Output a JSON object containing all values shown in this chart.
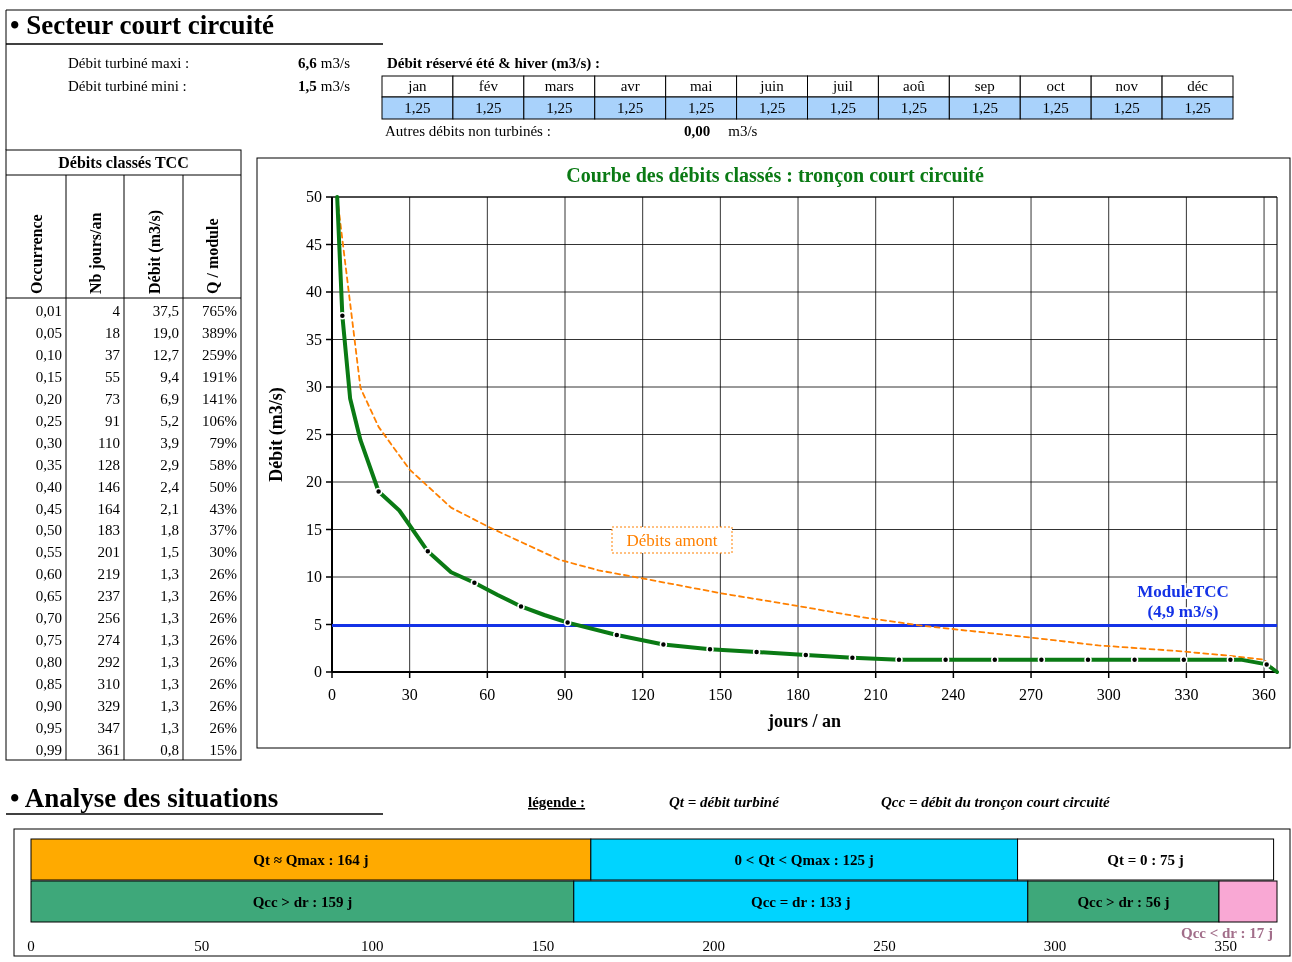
{
  "chart_data": [
    {
      "type": "other",
      "title": "• Secteur court circuité",
      "annotations": [
        "Débit turbiné maxi :",
        "6,6 m3/s",
        "Débit turbiné mini :",
        "1,5 m3/s",
        "Débit réservé été & hiver (m3/s) :",
        "Autres débits non turbinés :",
        "0,00 m3/s"
      ],
      "categories": [
        "jan",
        "fév",
        "mars",
        "avr",
        "mai",
        "juin",
        "juil",
        "aoû",
        "sep",
        "oct",
        "nov",
        "déc"
      ],
      "cell_labels": [
        [
          "1,25",
          "1,25",
          "1,25",
          "1,25",
          "1,25",
          "1,25",
          "1,25",
          "1,25",
          "1,25",
          "1,25",
          "1,25",
          "1,25"
        ]
      ],
      "color": "#a9d2fb"
    },
    {
      "type": "other",
      "title": "Débits classés TCC",
      "categories": [
        "Occurrence",
        "Nb jours/an",
        "Débit (m3/s)",
        "Q / module"
      ],
      "cell_labels": [
        [
          "0,01",
          "4",
          "37,5",
          "765%"
        ],
        [
          "0,05",
          "18",
          "19,0",
          "389%"
        ],
        [
          "0,10",
          "37",
          "12,7",
          "259%"
        ],
        [
          "0,15",
          "55",
          "9,4",
          "191%"
        ],
        [
          "0,20",
          "73",
          "6,9",
          "141%"
        ],
        [
          "0,25",
          "91",
          "5,2",
          "106%"
        ],
        [
          "0,30",
          "110",
          "3,9",
          "79%"
        ],
        [
          "0,35",
          "128",
          "2,9",
          "58%"
        ],
        [
          "0,40",
          "146",
          "2,4",
          "50%"
        ],
        [
          "0,45",
          "164",
          "2,1",
          "43%"
        ],
        [
          "0,50",
          "183",
          "1,8",
          "37%"
        ],
        [
          "0,55",
          "201",
          "1,5",
          "30%"
        ],
        [
          "0,60",
          "219",
          "1,3",
          "26%"
        ],
        [
          "0,65",
          "237",
          "1,3",
          "26%"
        ],
        [
          "0,70",
          "256",
          "1,3",
          "26%"
        ],
        [
          "0,75",
          "274",
          "1,3",
          "26%"
        ],
        [
          "0,80",
          "292",
          "1,3",
          "26%"
        ],
        [
          "0,85",
          "310",
          "1,3",
          "26%"
        ],
        [
          "0,90",
          "329",
          "1,3",
          "26%"
        ],
        [
          "0,95",
          "347",
          "1,3",
          "26%"
        ],
        [
          "0,99",
          "361",
          "0,8",
          "15%"
        ]
      ]
    },
    {
      "type": "line",
      "title": "Courbe des débits classés : tronçon court circuité",
      "xlabel": "jours / an",
      "ylabel": "Débit (m3/s)",
      "xlim": [
        0,
        365
      ],
      "xticks": [
        0,
        30,
        60,
        90,
        120,
        150,
        180,
        210,
        240,
        270,
        300,
        330,
        360
      ],
      "ylim": [
        0,
        50
      ],
      "yticks": [
        0,
        5,
        10,
        15,
        20,
        25,
        30,
        35,
        40,
        45,
        50
      ],
      "grid": true,
      "series": [
        {
          "type": "line",
          "color": "#ff8000",
          "line_style": "dashed",
          "x": [
            2,
            11,
            18,
            30,
            46,
            61,
            88,
            103,
            119,
            150,
            181,
            204,
            227,
            254,
            277,
            296,
            327,
            347,
            360,
            365
          ],
          "values": [
            50,
            29.9,
            25.8,
            21.3,
            17.3,
            15.2,
            11.8,
            10.7,
            9.9,
            8.3,
            6.9,
            5.8,
            4.9,
            4.1,
            3.4,
            2.8,
            2.2,
            1.7,
            1.3,
            0
          ]
        },
        {
          "type": "line",
          "color": "#0a7a14",
          "line_style": "solid",
          "x": [
            2,
            4,
            7,
            11,
            18,
            26,
            37,
            46,
            55,
            64,
            73,
            82,
            91,
            110,
            128,
            146,
            164,
            183,
            201,
            219,
            237,
            256,
            274,
            292,
            310,
            329,
            347,
            351,
            361,
            365
          ],
          "values": [
            50,
            37.5,
            28.8,
            24.4,
            19,
            17,
            12.7,
            10.5,
            9.4,
            8.1,
            6.9,
            6,
            5.2,
            3.9,
            2.9,
            2.4,
            2.1,
            1.8,
            1.5,
            1.3,
            1.3,
            1.3,
            1.3,
            1.3,
            1.3,
            1.3,
            1.3,
            1.3,
            0.8,
            0
          ]
        },
        {
          "type": "scatter",
          "color": "#000000",
          "marker": "circle",
          "x": [
            4,
            18,
            37,
            55,
            73,
            91,
            110,
            128,
            146,
            164,
            183,
            201,
            219,
            237,
            256,
            274,
            292,
            310,
            329,
            347,
            361
          ],
          "values": [
            37.5,
            19.0,
            12.7,
            9.4,
            6.9,
            5.2,
            3.9,
            2.9,
            2.4,
            2.1,
            1.8,
            1.5,
            1.3,
            1.3,
            1.3,
            1.3,
            1.3,
            1.3,
            1.3,
            1.3,
            0.8
          ]
        }
      ],
      "ref_lines": [
        {
          "axis": "y",
          "value": 4.9,
          "label": "ModuleTCC (4,9 m3/s)",
          "color": "#1432e6"
        }
      ],
      "annotations": [
        "Débits amont"
      ]
    },
    {
      "type": "bar",
      "orientation": "horizontal",
      "stacked": true,
      "title": "• Analyse des situations",
      "categories": [
        null,
        null
      ],
      "xlim": [
        0,
        365
      ],
      "xticks": [
        0,
        50,
        100,
        150,
        200,
        250,
        300,
        350
      ],
      "annotations": [
        "légende :",
        "Qt = débit turbiné",
        "Qcc = débit du tronçon court circuité"
      ],
      "series": [
        {
          "colors": [
            "#ffaa00",
            "#3ea87a"
          ],
          "values": [
            164,
            159
          ],
          "value_labels": [
            "Qt ≈ Qmax : 164 j",
            "Qcc > dr : 159 j"
          ]
        },
        {
          "colors": [
            "#00d4ff",
            "#00d4ff"
          ],
          "values": [
            125,
            133
          ],
          "value_labels": [
            "0 < Qt < Qmax : 125 j",
            "Qcc = dr : 133 j"
          ]
        },
        {
          "colors": [
            "#ffffff",
            "#3ea87a"
          ],
          "values": [
            75,
            56
          ],
          "value_labels": [
            "Qt = 0 : 75 j",
            "Qcc > dr : 56 j"
          ]
        },
        {
          "colors": [
            null,
            "#f9a8d4"
          ],
          "values": [
            null,
            17
          ],
          "value_labels": [
            null,
            "Qcc < dr : 17 j"
          ]
        }
      ]
    }
  ]
}
